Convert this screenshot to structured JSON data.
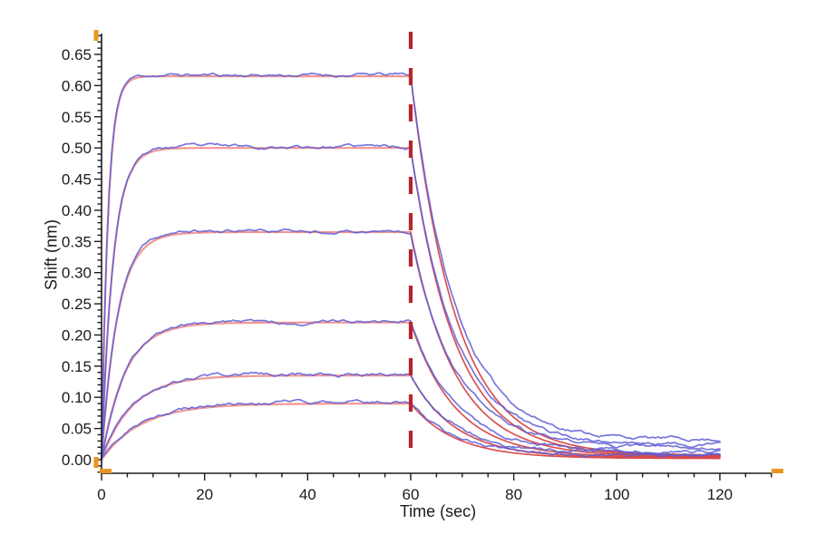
{
  "chart_data": {
    "type": "line",
    "title": "",
    "xlabel": "Time (sec)",
    "ylabel": "Shift (nm)",
    "xlim": [
      0,
      130
    ],
    "ylim": [
      -0.022,
      0.683
    ],
    "grid": false,
    "legend": null,
    "x_ticks": {
      "labels": [
        "0",
        "20",
        "40",
        "60",
        "80",
        "100",
        "120"
      ],
      "major_step": 20,
      "minor_step": 5,
      "minor_min": 0,
      "minor_max": 130
    },
    "y_ticks": {
      "labels": [
        "0.00",
        "0.05",
        "0.10",
        "0.15",
        "0.20",
        "0.25",
        "0.30",
        "0.35",
        "0.40",
        "0.45",
        "0.50",
        "0.55",
        "0.60",
        "0.65"
      ],
      "major_step": 0.05,
      "minor_step": 0.01,
      "minor_min": -0.02,
      "minor_max": 0.68
    },
    "phases": {
      "association_sec": [
        0,
        60
      ],
      "dissociation_sec": [
        60,
        120
      ]
    },
    "event_marker": {
      "time_sec": 60,
      "style": "dashed-vertical",
      "color": "#b8242b"
    },
    "axis_endpoint_marker_color": "#e89620",
    "sample_step_sec": 0.5,
    "model": "association y=A*(1-exp(-ka*t)); dissociation y=floor+(A-floor)*exp(-kd*(t-60))",
    "series": [
      {
        "name": "trace-1",
        "plateau_nm": 0.615,
        "ka": 0.8,
        "kd": 0.115,
        "data_floor_nm": 0.032,
        "fit_floor_nm": 0.007,
        "noise_seed": 11
      },
      {
        "name": "trace-2",
        "plateau_nm": 0.5,
        "ka": 0.45,
        "kd": 0.115,
        "data_floor_nm": 0.024,
        "fit_floor_nm": 0.006,
        "noise_seed": 23
      },
      {
        "name": "trace-3",
        "plateau_nm": 0.365,
        "ka": 0.32,
        "kd": 0.115,
        "data_floor_nm": 0.019,
        "fit_floor_nm": 0.005,
        "noise_seed": 37
      },
      {
        "name": "trace-4",
        "plateau_nm": 0.22,
        "ka": 0.22,
        "kd": 0.115,
        "data_floor_nm": 0.014,
        "fit_floor_nm": 0.004,
        "noise_seed": 51
      },
      {
        "name": "trace-5",
        "plateau_nm": 0.135,
        "ka": 0.17,
        "kd": 0.115,
        "data_floor_nm": 0.01,
        "fit_floor_nm": 0.003,
        "noise_seed": 67
      },
      {
        "name": "trace-6",
        "plateau_nm": 0.09,
        "ka": 0.13,
        "kd": 0.115,
        "data_floor_nm": 0.007,
        "fit_floor_nm": 0.002,
        "noise_seed": 83
      }
    ],
    "colors": {
      "data_trace": "#5e5ed6",
      "fit_association": "#f2908c",
      "fit_dissociation": "#d84848",
      "axis": "#1b1b1b",
      "tick_label": "#1b1b1b",
      "event_line": "#b8242b",
      "endpoint_marker": "#e89620"
    }
  }
}
